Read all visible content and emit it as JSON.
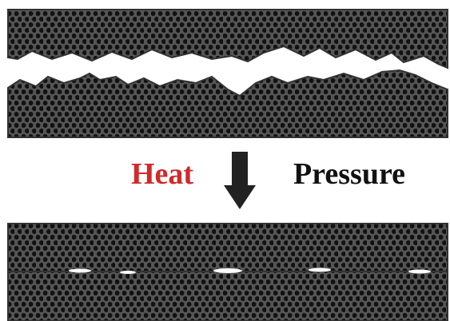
{
  "labels": {
    "left": "Heat",
    "right": "Pressure"
  }
}
